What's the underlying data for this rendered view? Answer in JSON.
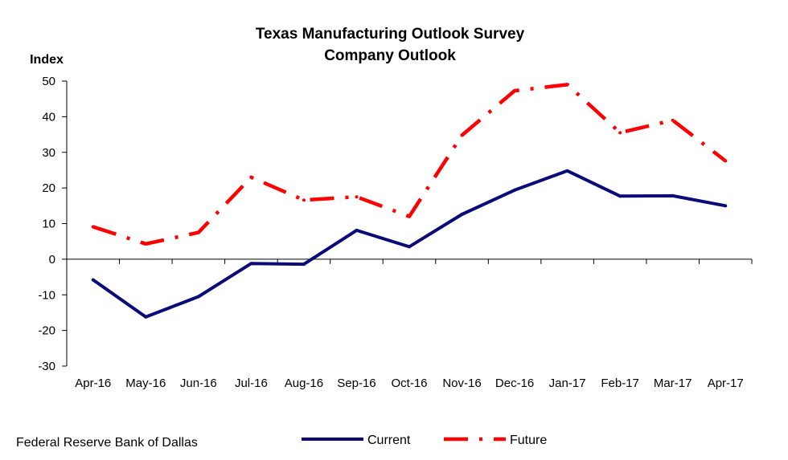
{
  "source": "Federal Reserve Bank of Dallas",
  "colors": {
    "current": "#0a0a78",
    "future": "#ff0000"
  },
  "chart_data": {
    "type": "line",
    "title": "Texas Manufacturing Outlook Survey",
    "subtitle": "Company Outlook",
    "ylabel": "Index",
    "xlabel": "",
    "categories": [
      "Apr-16",
      "May-16",
      "Jun-16",
      "Jul-16",
      "Aug-16",
      "Sep-16",
      "Oct-16",
      "Nov-16",
      "Dec-16",
      "Jan-17",
      "Feb-17",
      "Mar-17",
      "Apr-17"
    ],
    "ylim": [
      -30,
      50
    ],
    "yticks": [
      50,
      40,
      30,
      20,
      10,
      0,
      -10,
      -20,
      -30
    ],
    "grid": false,
    "legend_position": "bottom",
    "series": [
      {
        "name": "Current",
        "style": "solid",
        "values": [
          -5.8,
          -16.2,
          -10.5,
          -1.2,
          -1.4,
          8.1,
          3.5,
          12.6,
          19.4,
          24.8,
          17.7,
          17.8,
          15.0
        ]
      },
      {
        "name": "Future",
        "style": "dash-dot",
        "values": [
          9.1,
          4.3,
          7.5,
          23.0,
          16.6,
          17.5,
          12.0,
          34.8,
          47.3,
          49.0,
          35.5,
          39.0,
          27.6
        ]
      }
    ]
  }
}
